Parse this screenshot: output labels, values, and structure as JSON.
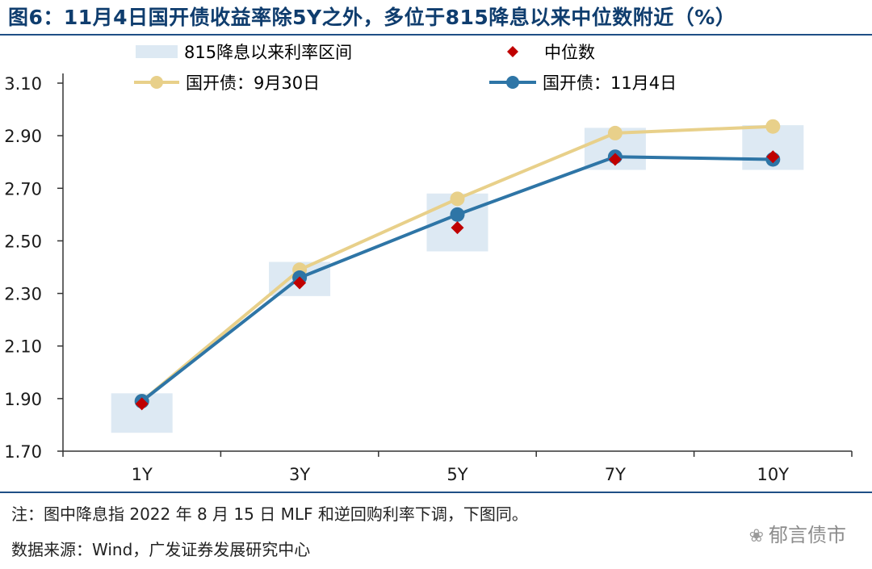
{
  "title": "图6：11月4日国开债收益率除5Y之外，多位于815降息以来中位数附近（%）",
  "colors": {
    "range": "#dde9f3",
    "median": "#c00000",
    "sep30": "#e8d08a",
    "nov4": "#2e75a6",
    "axis": "#333333",
    "title": "#0f3d6e"
  },
  "legend": {
    "range": "815降息以来利率区间",
    "median": "中位数",
    "sep30": "国开债：9月30日",
    "nov4": "国开债：11月4日"
  },
  "chart_data": {
    "type": "line",
    "title": "11月4日国开债收益率除5Y之外，多位于815降息以来中位数附近（%）",
    "categories": [
      "1Y",
      "3Y",
      "5Y",
      "7Y",
      "10Y"
    ],
    "ylim": [
      1.7,
      3.1
    ],
    "yticks": [
      "3.10",
      "2.90",
      "2.70",
      "2.50",
      "2.30",
      "2.10",
      "1.90",
      "1.70"
    ],
    "ytick_values": [
      3.1,
      2.9,
      2.7,
      2.5,
      2.3,
      2.1,
      1.9,
      1.7
    ],
    "range_bands": [
      {
        "category": "1Y",
        "low": 1.77,
        "high": 1.92
      },
      {
        "category": "3Y",
        "low": 2.29,
        "high": 2.42
      },
      {
        "category": "5Y",
        "low": 2.46,
        "high": 2.68
      },
      {
        "category": "7Y",
        "low": 2.77,
        "high": 2.93
      },
      {
        "category": "10Y",
        "low": 2.77,
        "high": 2.94
      }
    ],
    "series": [
      {
        "name": "国开债：9月30日",
        "key": "sep30",
        "values": [
          1.89,
          2.39,
          2.66,
          2.91,
          2.935
        ]
      },
      {
        "name": "国开债：11月4日",
        "key": "nov4",
        "values": [
          1.89,
          2.36,
          2.6,
          2.82,
          2.81
        ]
      },
      {
        "name": "中位数",
        "key": "median",
        "values": [
          1.88,
          2.34,
          2.55,
          2.81,
          2.82
        ]
      }
    ]
  },
  "notes": {
    "note1": "注：图中降息指 2022 年 8 月 15 日 MLF 和逆回购利率下调，下图同。",
    "source": "数据来源：Wind，广发证券发展研究中心"
  },
  "watermark": "郁言债市"
}
